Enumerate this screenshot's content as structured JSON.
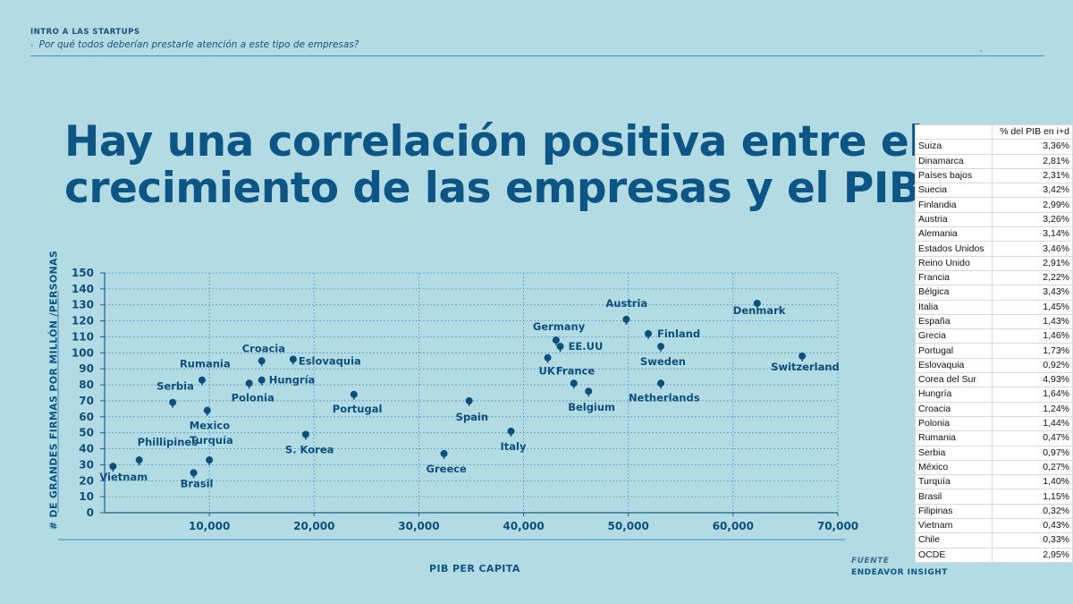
{
  "header": {
    "kicker": "INTRO A LAS  STARTUPS",
    "subtitle_arrow": "›",
    "subtitle": "Por qué todos deberían prestarle atención a este tipo de empresas?",
    "tick": ","
  },
  "title": {
    "line1": "Hay una correlación positiva entre el",
    "line2": "crecimiento de las empresas y el PIB"
  },
  "source": {
    "label": "FUENTE",
    "value": "ENDEAVOR INSIGHT"
  },
  "chart_data": {
    "type": "scatter",
    "xlabel": "PIB PER CAPITA",
    "ylabel": "# DE GRANDES FIRMAS POR MILLÓN /PERSONAS",
    "xlim": [
      0,
      70000
    ],
    "ylim": [
      0,
      150
    ],
    "xticks": [
      10000,
      20000,
      30000,
      40000,
      50000,
      60000,
      70000
    ],
    "xtick_labels": [
      "10,000",
      "20,000",
      "30,000",
      "40,000",
      "50,000",
      "60,000",
      "70,000"
    ],
    "yticks": [
      0,
      10,
      20,
      30,
      40,
      50,
      60,
      70,
      80,
      90,
      100,
      110,
      120,
      130,
      140,
      150
    ],
    "ytick_labels": [
      "0",
      "10",
      "20",
      "30",
      "40",
      "50",
      "60",
      "70",
      "80",
      "90",
      "100",
      "110",
      "120",
      "130",
      "140",
      "150"
    ],
    "grid": true,
    "marker_color": "#0d4f7c",
    "points": [
      {
        "label": "Vietnam",
        "x": 800,
        "y": 29
      },
      {
        "label": "Phillipines",
        "x": 3300,
        "y": 33
      },
      {
        "label": "Brasil",
        "x": 8500,
        "y": 25
      },
      {
        "label": "Turquía",
        "x": 10000,
        "y": 33
      },
      {
        "label": "Serbia",
        "x": 6500,
        "y": 69
      },
      {
        "label": "Mexico",
        "x": 9800,
        "y": 64
      },
      {
        "label": "Rumania",
        "x": 9300,
        "y": 83
      },
      {
        "label": "Polonia",
        "x": 13800,
        "y": 81
      },
      {
        "label": "Hungría",
        "x": 15000,
        "y": 83
      },
      {
        "label": "Croacia",
        "x": 15000,
        "y": 95
      },
      {
        "label": "Eslovaquia",
        "x": 18000,
        "y": 96
      },
      {
        "label": "S. Korea",
        "x": 19200,
        "y": 49
      },
      {
        "label": "Portugal",
        "x": 23800,
        "y": 74
      },
      {
        "label": "Greece",
        "x": 32400,
        "y": 37
      },
      {
        "label": "Spain",
        "x": 34800,
        "y": 70
      },
      {
        "label": "Italy",
        "x": 38800,
        "y": 51
      },
      {
        "label": "Germany",
        "x": 43100,
        "y": 108
      },
      {
        "label": "EE.UU",
        "x": 43500,
        "y": 104
      },
      {
        "label": "UK",
        "x": 42300,
        "y": 97
      },
      {
        "label": "France",
        "x": 44800,
        "y": 81
      },
      {
        "label": "Belgium",
        "x": 46200,
        "y": 76
      },
      {
        "label": "Austria",
        "x": 49800,
        "y": 121
      },
      {
        "label": "Finland",
        "x": 51900,
        "y": 112
      },
      {
        "label": "Sweden",
        "x": 53100,
        "y": 104
      },
      {
        "label": "Netherlands",
        "x": 53100,
        "y": 81
      },
      {
        "label": "Denmark",
        "x": 62300,
        "y": 131
      },
      {
        "label": "Switzerland",
        "x": 66600,
        "y": 98
      }
    ]
  },
  "rd_table": {
    "header": "% del PIB en i+d",
    "rows": [
      {
        "country": "Suiza",
        "value": "3,36%"
      },
      {
        "country": "Dinamarca",
        "value": "2,81%"
      },
      {
        "country": "Países bajos",
        "value": "2,31%"
      },
      {
        "country": "Suecia",
        "value": "3,42%"
      },
      {
        "country": "Finlandia",
        "value": "2,99%"
      },
      {
        "country": "Austria",
        "value": "3,26%"
      },
      {
        "country": "Alemania",
        "value": "3,14%"
      },
      {
        "country": "Estados Unidos",
        "value": "3,46%"
      },
      {
        "country": "Reino Unido",
        "value": "2,91%"
      },
      {
        "country": "Francia",
        "value": "2,22%"
      },
      {
        "country": "Bélgica",
        "value": "3,43%"
      },
      {
        "country": "Italia",
        "value": "1,45%"
      },
      {
        "country": "España",
        "value": "1,43%"
      },
      {
        "country": "Grecia",
        "value": "1,46%"
      },
      {
        "country": "Portugal",
        "value": "1,73%"
      },
      {
        "country": "Eslovaquia",
        "value": "0,92%"
      },
      {
        "country": "Corea del Sur",
        "value": "4,93%"
      },
      {
        "country": "Hungría",
        "value": "1,64%"
      },
      {
        "country": "Croacia",
        "value": "1,24%"
      },
      {
        "country": "Polonia",
        "value": "1,44%"
      },
      {
        "country": "Rumania",
        "value": "0,47%"
      },
      {
        "country": "Serbia",
        "value": "0,97%"
      },
      {
        "country": "México",
        "value": "0,27%"
      },
      {
        "country": "Turquía",
        "value": "1,40%"
      },
      {
        "country": "Brasil",
        "value": "1,15%"
      },
      {
        "country": "Filipinas",
        "value": "0,32%"
      },
      {
        "country": "Vietnam",
        "value": "0,43%"
      },
      {
        "country": "Chile",
        "value": "0,33%"
      },
      {
        "country": "OCDE",
        "value": "2,95%"
      }
    ]
  }
}
